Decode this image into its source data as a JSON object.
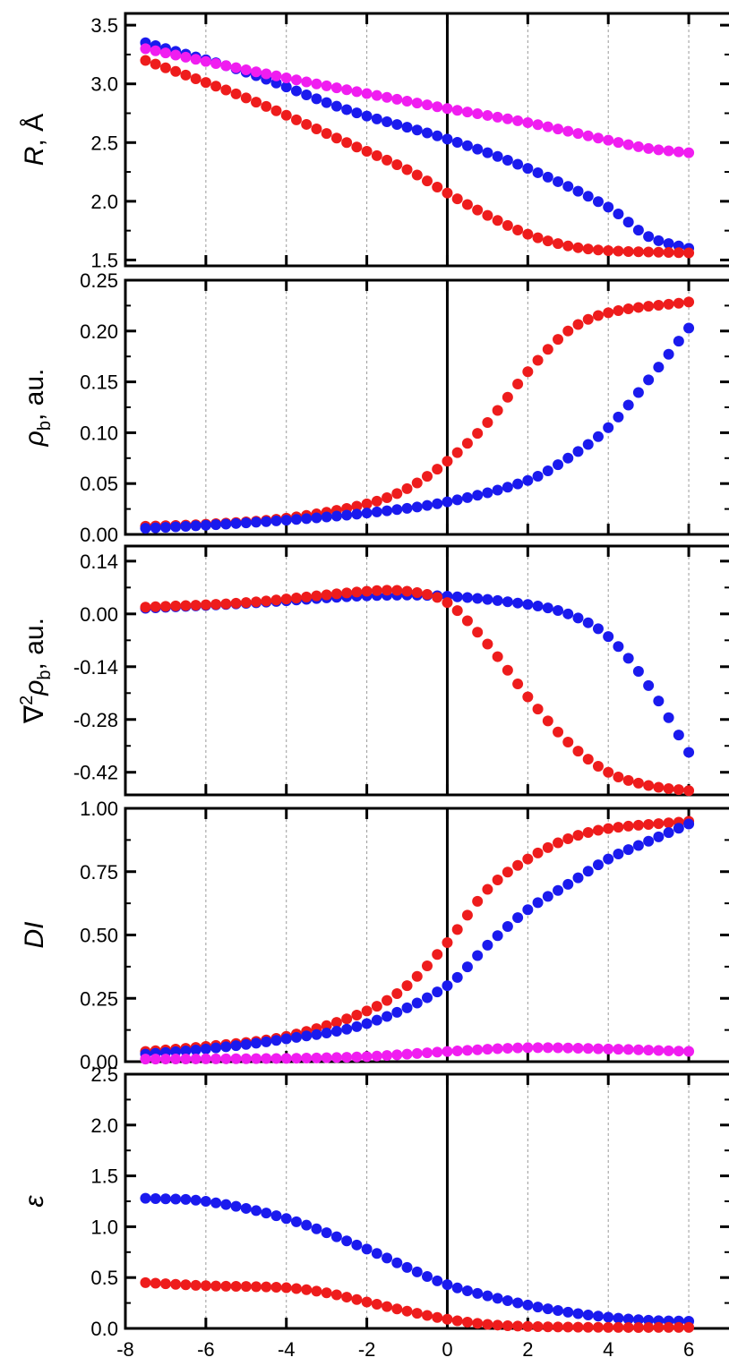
{
  "chart_data": {
    "type": "scatter",
    "shared_x": {
      "ticks": [
        -8,
        -6,
        -4,
        -2,
        0,
        2,
        4,
        6
      ],
      "range": [
        -8,
        7
      ]
    },
    "colors": {
      "red": "#ee1c1c",
      "blue": "#1a1aee",
      "magenta": "#f01df0"
    },
    "panels": [
      {
        "id": "R",
        "ylabel": "R, Å",
        "ylim": [
          1.45,
          3.6
        ],
        "yticks": [
          "1.5",
          "2.0",
          "2.5",
          "3.0",
          "3.5"
        ],
        "series": [
          {
            "color": "blue",
            "points": [
              [
                -7.5,
                3.35
              ],
              [
                -5,
                3.1
              ],
              [
                -2.5,
                2.78
              ],
              [
                0,
                2.53
              ],
              [
                2,
                2.28
              ],
              [
                4,
                1.95
              ],
              [
                5,
                1.7
              ],
              [
                6.1,
                1.59
              ]
            ]
          },
          {
            "color": "red",
            "points": [
              [
                -7.5,
                3.2
              ],
              [
                -5,
                2.88
              ],
              [
                -2.5,
                2.5
              ],
              [
                -1,
                2.27
              ],
              [
                0,
                2.07
              ],
              [
                1,
                1.88
              ],
              [
                2,
                1.72
              ],
              [
                3,
                1.62
              ],
              [
                4,
                1.58
              ],
              [
                6.1,
                1.56
              ]
            ]
          },
          {
            "color": "magenta",
            "points": [
              [
                -7.5,
                3.3
              ],
              [
                -5,
                3.12
              ],
              [
                -2.5,
                2.95
              ],
              [
                0,
                2.79
              ],
              [
                2,
                2.67
              ],
              [
                4,
                2.52
              ],
              [
                5,
                2.45
              ],
              [
                6.1,
                2.41
              ]
            ]
          }
        ]
      },
      {
        "id": "rho",
        "ylabel": "ρb, au.",
        "ylim": [
          0.0,
          0.25
        ],
        "yticks": [
          "0.00",
          "0.05",
          "0.10",
          "0.15",
          "0.20",
          "0.25"
        ],
        "series": [
          {
            "color": "red",
            "points": [
              [
                -7.5,
                0.008
              ],
              [
                -6,
                0.01
              ],
              [
                -4,
                0.016
              ],
              [
                -2,
                0.03
              ],
              [
                -1,
                0.045
              ],
              [
                0,
                0.072
              ],
              [
                1,
                0.11
              ],
              [
                2,
                0.16
              ],
              [
                3,
                0.2
              ],
              [
                4,
                0.218
              ],
              [
                6.1,
                0.229
              ]
            ]
          },
          {
            "color": "blue",
            "points": [
              [
                -7.5,
                0.006
              ],
              [
                -6,
                0.009
              ],
              [
                -4,
                0.014
              ],
              [
                -2,
                0.021
              ],
              [
                0,
                0.032
              ],
              [
                2,
                0.053
              ],
              [
                3,
                0.075
              ],
              [
                4,
                0.105
              ],
              [
                5,
                0.152
              ],
              [
                6.1,
                0.208
              ]
            ]
          }
        ]
      },
      {
        "id": "lap",
        "ylabel": "∇2ρb, au.",
        "ylim": [
          -0.48,
          0.18
        ],
        "yticks": [
          "0.14",
          "0.00",
          "-0.14",
          "-0.28",
          "-0.42"
        ],
        "ytick_values": [
          0.14,
          0.0,
          -0.14,
          -0.28,
          -0.42
        ],
        "series": [
          {
            "color": "blue",
            "points": [
              [
                -7.5,
                0.015
              ],
              [
                -5,
                0.028
              ],
              [
                -2,
                0.048
              ],
              [
                0,
                0.047
              ],
              [
                2,
                0.025
              ],
              [
                3,
                0.0
              ],
              [
                4,
                -0.06
              ],
              [
                5,
                -0.19
              ],
              [
                6.1,
                -0.385
              ]
            ]
          },
          {
            "color": "red",
            "points": [
              [
                -7.5,
                0.018
              ],
              [
                -5,
                0.03
              ],
              [
                -2,
                0.06
              ],
              [
                -1,
                0.06
              ],
              [
                0,
                0.03
              ],
              [
                1,
                -0.08
              ],
              [
                2,
                -0.22
              ],
              [
                3,
                -0.34
              ],
              [
                4,
                -0.42
              ],
              [
                5,
                -0.455
              ],
              [
                6.1,
                -0.47
              ]
            ]
          }
        ]
      },
      {
        "id": "DI",
        "ylabel": "DI",
        "ylim": [
          0.0,
          1.0
        ],
        "yticks": [
          "0.00",
          "0.25",
          "0.50",
          "0.75",
          "1.00"
        ],
        "series": [
          {
            "color": "red",
            "points": [
              [
                -7.5,
                0.04
              ],
              [
                -6,
                0.06
              ],
              [
                -4,
                0.1
              ],
              [
                -2,
                0.2
              ],
              [
                -1,
                0.3
              ],
              [
                0,
                0.47
              ],
              [
                1,
                0.68
              ],
              [
                2,
                0.8
              ],
              [
                3,
                0.88
              ],
              [
                4,
                0.92
              ],
              [
                6.1,
                0.95
              ]
            ]
          },
          {
            "color": "blue",
            "points": [
              [
                -7.5,
                0.03
              ],
              [
                -6,
                0.05
              ],
              [
                -4,
                0.09
              ],
              [
                -2,
                0.15
              ],
              [
                0,
                0.3
              ],
              [
                1,
                0.46
              ],
              [
                2,
                0.6
              ],
              [
                3,
                0.7
              ],
              [
                4,
                0.8
              ],
              [
                5,
                0.87
              ],
              [
                6.1,
                0.945
              ]
            ]
          },
          {
            "color": "magenta",
            "points": [
              [
                -7.5,
                0.01
              ],
              [
                -4,
                0.013
              ],
              [
                -2,
                0.02
              ],
              [
                0,
                0.04
              ],
              [
                2,
                0.055
              ],
              [
                4,
                0.05
              ],
              [
                6.1,
                0.04
              ]
            ]
          }
        ]
      },
      {
        "id": "eps",
        "ylabel": "ε",
        "ylim": [
          0.0,
          2.5
        ],
        "yticks": [
          "0.0",
          "0.5",
          "1.0",
          "1.5",
          "2.0",
          "2.5"
        ],
        "series": [
          {
            "color": "blue",
            "points": [
              [
                -7.5,
                1.28
              ],
              [
                -6,
                1.25
              ],
              [
                -4,
                1.08
              ],
              [
                -2,
                0.78
              ],
              [
                -1,
                0.6
              ],
              [
                0,
                0.43
              ],
              [
                1,
                0.32
              ],
              [
                2,
                0.23
              ],
              [
                3,
                0.16
              ],
              [
                4,
                0.11
              ],
              [
                5,
                0.08
              ],
              [
                6.1,
                0.07
              ]
            ]
          },
          {
            "color": "red",
            "points": [
              [
                -7.5,
                0.45
              ],
              [
                -6,
                0.42
              ],
              [
                -4,
                0.4
              ],
              [
                -3,
                0.35
              ],
              [
                -2,
                0.26
              ],
              [
                -1,
                0.17
              ],
              [
                0,
                0.09
              ],
              [
                1,
                0.04
              ],
              [
                2,
                0.02
              ],
              [
                4,
                0.01
              ],
              [
                6.1,
                0.01
              ]
            ]
          }
        ]
      }
    ]
  }
}
